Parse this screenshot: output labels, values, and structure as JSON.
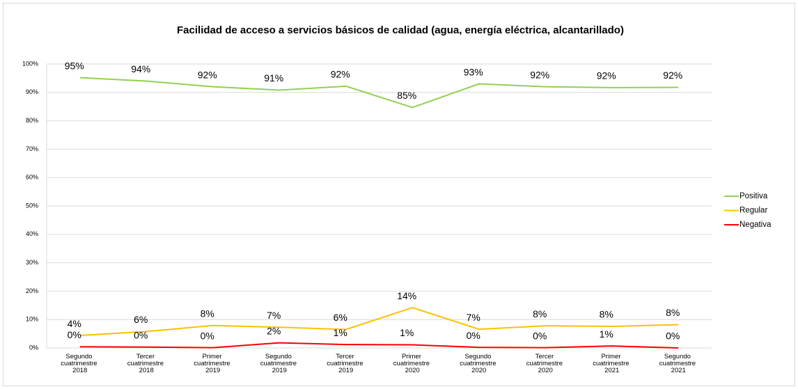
{
  "chart_data": {
    "type": "line",
    "title": "Facilidad de acceso a servicios básicos de calidad (agua, energía eléctrica, alcantarillado)",
    "categories": [
      "Segundo cuatrimestre 2018",
      "Tercer cuatrimestre 2018",
      "Primer cuatrimestre 2019",
      "Segundo cuatrimestre 2019",
      "Tercer cuatrimestre 2019",
      "Primer cuatrimestre 2020",
      "Segundo cuatrimestre 2020",
      "Tercer cuatrimestre 2020",
      "Primer cuatrimestre 2021",
      "Segundo cuatrimestre 2021"
    ],
    "series": [
      {
        "name": "Positiva",
        "color": "#92d050",
        "values": [
          95.2,
          94,
          92,
          90.8,
          92.2,
          84.7,
          93,
          92,
          91.7,
          91.8
        ],
        "value_labels": [
          "95%",
          "94%",
          "92%",
          "91%",
          "92%",
          "85%",
          "93%",
          "92%",
          "92%",
          "92%"
        ]
      },
      {
        "name": "Regular",
        "color": "#ffc000",
        "values": [
          4.4,
          5.8,
          7.9,
          7.3,
          6.5,
          14.2,
          6.6,
          7.8,
          7.6,
          8.2
        ],
        "value_labels": [
          "4%",
          "6%",
          "8%",
          "7%",
          "6%",
          "14%",
          "7%",
          "8%",
          "8%",
          "8%"
        ]
      },
      {
        "name": "Negativa",
        "color": "#ff0000",
        "values": [
          0.4,
          0.3,
          0.1,
          1.8,
          1.2,
          1.1,
          0.2,
          0.1,
          0.7,
          0.0
        ],
        "value_labels": [
          "0%",
          "0%",
          "0%",
          "2%",
          "1%",
          "1%",
          "0%",
          "0%",
          "1%",
          "0%"
        ]
      }
    ],
    "ylim": [
      0,
      100
    ],
    "yticks": [
      {
        "value": 0,
        "label": "0%"
      },
      {
        "value": 10,
        "label": "10%"
      },
      {
        "value": 20,
        "label": "20%"
      },
      {
        "value": 30,
        "label": "30%"
      },
      {
        "value": 40,
        "label": "40%"
      },
      {
        "value": 50,
        "label": "50%"
      },
      {
        "value": 60,
        "label": "60%"
      },
      {
        "value": 70,
        "label": "70%"
      },
      {
        "value": 80,
        "label": "80%"
      },
      {
        "value": 90,
        "label": "90%"
      },
      {
        "value": 100,
        "label": "100%"
      }
    ],
    "grid": true,
    "legend": "right"
  }
}
